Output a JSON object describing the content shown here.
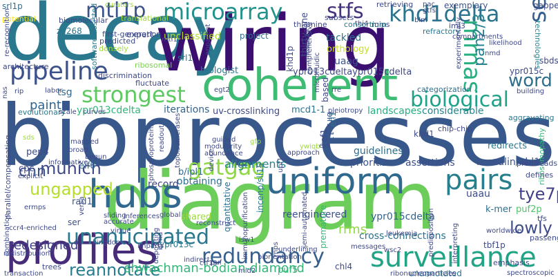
{
  "words": [
    {
      "text": "decay",
      "color": "#2a788e"
    },
    {
      "text": "wiring",
      "color": "#3b0f70"
    },
    {
      "text": "bioprocesses",
      "color": "#38588c"
    },
    {
      "text": "diagram",
      "color": "#6ccd5a"
    },
    {
      "text": "coherent",
      "color": "#3ebc74"
    },
    {
      "text": "profiles",
      "color": "#472c7a"
    },
    {
      "text": "hubs",
      "color": "#31688e"
    },
    {
      "text": "uniform",
      "color": "#30698e"
    },
    {
      "text": "pipeline",
      "color": "#3b528b"
    },
    {
      "text": "surveillance",
      "color": "#20a486"
    },
    {
      "text": "biological",
      "color": "#1fa287"
    },
    {
      "text": "strongest",
      "color": "#5ec962"
    },
    {
      "text": "microarray",
      "color": "#22928c"
    },
    {
      "text": "stfs",
      "color": "#46327e"
    },
    {
      "text": "khd1delta",
      "color": "#2c738e"
    },
    {
      "text": "mtl1p",
      "color": "#3b528b"
    },
    {
      "text": "mrnas",
      "color": "#29af7f"
    },
    {
      "text": "sets",
      "color": "#355f8d"
    },
    {
      "text": "gatgag",
      "color": "#8fd744"
    },
    {
      "text": "pairs",
      "color": "#277f8e"
    },
    {
      "text": "redundancy",
      "color": "#355f8d"
    },
    {
      "text": "unanticipated",
      "color": "#2a788e"
    },
    {
      "text": "munich",
      "color": "#3e4989"
    },
    {
      "text": "cnn",
      "color": "#3b528b"
    },
    {
      "text": "ungapped",
      "color": "#b5de2b"
    },
    {
      "text": "reannotate",
      "color": "#287d8e"
    },
    {
      "text": "word",
      "color": "#2d708e"
    },
    {
      "text": "tye7p",
      "color": "#424086"
    },
    {
      "text": "lowly",
      "color": "#3e4c8a"
    },
    {
      "text": "pan2/3",
      "color": "#26828e"
    },
    {
      "text": "redesigned",
      "color": "#414287"
    },
    {
      "text": "shwachman-bodian-diamond",
      "color": "#35b779"
    },
    {
      "text": "paint",
      "color": "#32648e"
    },
    {
      "text": "iterations",
      "color": "#33638d"
    },
    {
      "text": "alignments",
      "color": "#25858e"
    },
    {
      "text": "prioritize",
      "color": "#3b528b"
    },
    {
      "text": "assertions",
      "color": "#3d4e8a"
    },
    {
      "text": "guidelines",
      "color": "#2e6e8e"
    },
    {
      "text": "reengineered",
      "color": "#3b528b"
    },
    {
      "text": "ypr015cdelta",
      "color": "#32648e"
    },
    {
      "text": "cross-connections",
      "color": "#2c728e"
    },
    {
      "text": "tackled",
      "color": "#2c738e"
    },
    {
      "text": "orthology",
      "color": "#c8e020"
    },
    {
      "text": "uaag",
      "color": "#3a548c"
    },
    {
      "text": "ypr013cdeltaypr015cdelta",
      "color": "#3f4788"
    },
    {
      "text": "unclassified",
      "color": "#b2dd2d"
    },
    {
      "text": "expert",
      "color": "#3e4a89"
    },
    {
      "text": "project",
      "color": "#2f6c8e"
    },
    {
      "text": "biologist",
      "color": "#2b758e"
    },
    {
      "text": "ypr013cdelta",
      "color": "#32b67a"
    },
    {
      "text": "uv-crosslinking",
      "color": "#3e4a89"
    },
    {
      "text": "mcd1-1",
      "color": "#2c738e"
    },
    {
      "text": "landscapes",
      "color": "#29af7f"
    },
    {
      "text": "considerable",
      "color": "#25858e"
    },
    {
      "text": "borealin/nbl1",
      "color": "#3b528b"
    },
    {
      "text": "redirects",
      "color": "#2a788e"
    },
    {
      "text": "pep4",
      "color": "#3e4989"
    },
    {
      "text": "eif6",
      "color": "#306a8e"
    },
    {
      "text": "cpc",
      "color": "#3f4788"
    },
    {
      "text": "khd1",
      "color": "#3e4989"
    },
    {
      "text": "bir1-17",
      "color": "#3a548c"
    },
    {
      "text": "b/ipl1",
      "color": "#32648e"
    },
    {
      "text": "record",
      "color": "#404688"
    },
    {
      "text": "obtaining",
      "color": "#2d708e"
    },
    {
      "text": "uaau",
      "color": "#3e4c8a"
    },
    {
      "text": "k-mer",
      "color": "#2e6f8e"
    },
    {
      "text": "puf2p",
      "color": "#50c46a"
    },
    {
      "text": "rrms",
      "color": "#90d743"
    },
    {
      "text": "incenp/sli15",
      "color": "#2a788e"
    },
    {
      "text": "quantitative",
      "color": "#2e6e8e"
    },
    {
      "text": "ypr013c",
      "color": "#2a788e"
    },
    {
      "text": "ypr015c",
      "color": "#3e4a89"
    },
    {
      "text": "sbds",
      "color": "#3f4788"
    },
    {
      "text": "srl1",
      "color": "#2c728e"
    },
    {
      "text": "categorization",
      "color": "#2e6e8e"
    },
    {
      "text": "exemplary",
      "color": "#3b528b"
    },
    {
      "text": "iml3",
      "color": "#3e4989"
    },
    {
      "text": "tsg",
      "color": "#31688e"
    },
    {
      "text": "chl4",
      "color": "#3e4989"
    },
    {
      "text": "tbf1p",
      "color": "#3e4989"
    },
    {
      "text": "unannotated",
      "color": "#2d708e"
    },
    {
      "text": "puf5",
      "color": "#35b779"
    },
    {
      "text": "shared",
      "color": "#9fda3a"
    },
    {
      "text": "rad1",
      "color": "#3a548c"
    },
    {
      "text": "ser",
      "color": "#3d4e8a"
    },
    {
      "text": "zif268",
      "color": "#2a788e"
    },
    {
      "text": "srl1p",
      "color": "#2f6c8e"
    },
    {
      "text": "thirty-one",
      "color": "#3e4a89"
    },
    {
      "text": "khd1p",
      "color": "#3e4a89"
    },
    {
      "text": "ef1",
      "color": "#3e4a89"
    },
    {
      "text": "based",
      "color": "#3f4788"
    },
    {
      "text": "efl1",
      "color": "#2c738e"
    },
    {
      "text": "mips",
      "color": "#3e4989"
    },
    {
      "text": "thiamine",
      "color": "#3e4989"
    },
    {
      "text": "subsets",
      "color": "#3e4989"
    },
    {
      "text": "consortium",
      "color": "#2a788e"
    },
    {
      "text": "retrieving",
      "color": "#3e4989"
    },
    {
      "text": "refractory",
      "color": "#2a788e"
    },
    {
      "text": "gapped",
      "color": "#3e4989"
    },
    {
      "text": "technologies",
      "color": "#26828e"
    },
    {
      "text": "first-generation",
      "color": "#3e4989"
    },
    {
      "text": "predicted",
      "color": "#3e4989"
    },
    {
      "text": "densely",
      "color": "#9fda3a"
    },
    {
      "text": "translational",
      "color": "#9fda3a"
    },
    {
      "text": "biomolecular",
      "color": "#3e4989"
    },
    {
      "text": "potential",
      "color": "#fde725"
    },
    {
      "text": "software-assisted",
      "color": "#2a788e"
    },
    {
      "text": "discrimination",
      "color": "#3e4989"
    },
    {
      "text": "architecture",
      "color": "#3e4989"
    },
    {
      "text": "ribosomal",
      "color": "#7ad151"
    },
    {
      "text": "fluctuate",
      "color": "#3e4989"
    },
    {
      "text": "evolutionary",
      "color": "#2a788e"
    },
    {
      "text": "parallel/compensating",
      "color": "#3e4989"
    },
    {
      "text": "combination",
      "color": "#3e4989"
    },
    {
      "text": "ribosomopathy",
      "color": "#35b779"
    },
    {
      "text": "chip-chip",
      "color": "#3e4989"
    },
    {
      "text": "aggravating",
      "color": "#2a788e"
    },
    {
      "text": "proofreads",
      "color": "#3e4989"
    },
    {
      "text": "defines",
      "color": "#3e4989"
    },
    {
      "text": "passenger",
      "color": "#3e4989"
    },
    {
      "text": "tfs",
      "color": "#3e4989"
    },
    {
      "text": "emphasis",
      "color": "#3e4989"
    },
    {
      "text": "spectroscopic",
      "color": "#3e4989"
    },
    {
      "text": "ribonucleoparticles",
      "color": "#3e4989"
    },
    {
      "text": "trees",
      "color": "#3e4989"
    },
    {
      "text": "transaction",
      "color": "#3e4989"
    },
    {
      "text": "redistribution",
      "color": "#3e4989"
    },
    {
      "text": "kingdoms",
      "color": "#3e4989"
    },
    {
      "text": "imparts",
      "color": "#3e4989"
    },
    {
      "text": "premature",
      "color": "#35b779"
    },
    {
      "text": "leukemia",
      "color": "#3e4989"
    },
    {
      "text": "messages",
      "color": "#3e4989"
    },
    {
      "text": "biorientation",
      "color": "#3e4989"
    },
    {
      "text": "ctf19",
      "color": "#3e4989"
    },
    {
      "text": "underlining",
      "color": "#3e4989"
    },
    {
      "text": "reconstruct",
      "color": "#3e4989"
    },
    {
      "text": "accurate",
      "color": "#3e4989"
    },
    {
      "text": "sliding",
      "color": "#3e4989"
    },
    {
      "text": "inferences",
      "color": "#3e4989"
    },
    {
      "text": "global",
      "color": "#3e4989"
    },
    {
      "text": "device",
      "color": "#3e4989"
    },
    {
      "text": "upf1",
      "color": "#3e4989"
    },
    {
      "text": "approach",
      "color": "#3e4989"
    },
    {
      "text": "modularity",
      "color": "#3e4989"
    },
    {
      "text": "abundance",
      "color": "#3e4989"
    },
    {
      "text": "guided",
      "color": "#3e4989"
    },
    {
      "text": "phosphoproteins",
      "color": "#3e4989"
    },
    {
      "text": "topoisomerases",
      "color": "#3e4989"
    },
    {
      "text": "mapped",
      "color": "#3e4989"
    },
    {
      "text": "broad",
      "color": "#3e4989"
    },
    {
      "text": "begun",
      "color": "#3e4989"
    },
    {
      "text": "informative",
      "color": "#3e4989"
    },
    {
      "text": "explicit",
      "color": "#3e4989"
    },
    {
      "text": "ccr4-enriched",
      "color": "#3e4989"
    },
    {
      "text": "labor",
      "color": "#3e4989"
    },
    {
      "text": "rip",
      "color": "#3e4989"
    },
    {
      "text": "curves",
      "color": "#3e4989"
    },
    {
      "text": "scale",
      "color": "#3e4989"
    },
    {
      "text": "egt2",
      "color": "#3e4989"
    },
    {
      "text": "building",
      "color": "#3e4989"
    },
    {
      "text": "nmd",
      "color": "#3e4989"
    },
    {
      "text": "likelihood",
      "color": "#3e4989"
    },
    {
      "text": "compartments",
      "color": "#3e4989"
    },
    {
      "text": "comprehensive",
      "color": "#3e4989"
    },
    {
      "text": "pleiotropy",
      "color": "#3e4989"
    },
    {
      "text": "apparent",
      "color": "#3e4989"
    },
    {
      "text": "semi-automated",
      "color": "#3e4989"
    },
    {
      "text": "readout",
      "color": "#3e4989"
    },
    {
      "text": "mid2",
      "color": "#3e4989"
    },
    {
      "text": "worldwide",
      "color": "#3e4989"
    },
    {
      "text": "gfp",
      "color": "#9fda3a"
    },
    {
      "text": "ywiqb",
      "color": "#9fda3a"
    },
    {
      "text": "ext",
      "color": "#3e4989"
    },
    {
      "text": "sds",
      "color": "#9fda3a"
    },
    {
      "text": "thi4",
      "color": "#3e4989"
    },
    {
      "text": "rre",
      "color": "#3e4989"
    },
    {
      "text": "isw1",
      "color": "#3e4989"
    },
    {
      "text": "puf",
      "color": "#3e4989"
    },
    {
      "text": "wsc2",
      "color": "#3e4989"
    },
    {
      "text": "ermps",
      "color": "#3e4989"
    },
    {
      "text": "mtl1",
      "color": "#3e4989"
    },
    {
      "text": "blm",
      "color": "#3e4989"
    },
    {
      "text": "curators",
      "color": "#9fda3a"
    },
    {
      "text": "pac",
      "color": "#3e4989"
    },
    {
      "text": "gtfs",
      "color": "#3e4989"
    },
    {
      "text": "versa",
      "color": "#3e4989"
    },
    {
      "text": "virtue",
      "color": "#3e4989"
    },
    {
      "text": "depositing",
      "color": "#3e4989"
    },
    {
      "text": "immunopurification",
      "color": "#3e4989"
    },
    {
      "text": "predisposition",
      "color": "#3e4989"
    },
    {
      "text": "indirect",
      "color": "#3e4989"
    },
    {
      "text": "microfluidic",
      "color": "#3e4989"
    },
    {
      "text": "miniarray",
      "color": "#3e4989"
    },
    {
      "text": "experimentally",
      "color": "#3e4989"
    },
    {
      "text": "interpreting",
      "color": "#3e4989"
    },
    {
      "text": "mrna",
      "color": "#3e4989"
    },
    {
      "text": "nas",
      "color": "#3e4989"
    },
    {
      "text": "rnps",
      "color": "#3e4989"
    },
    {
      "text": "re-recognition",
      "color": "#3e4989"
    }
  ]
}
